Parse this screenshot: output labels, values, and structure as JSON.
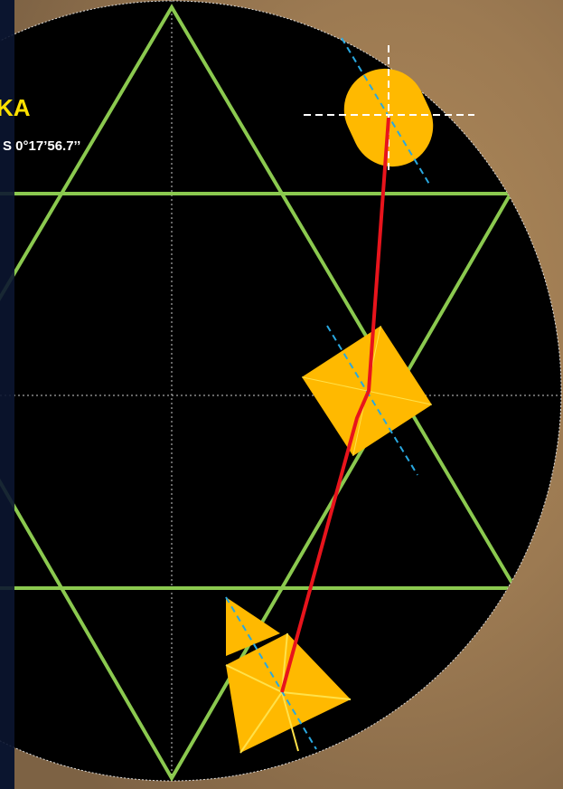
{
  "label": {
    "title": "KA",
    "coordinates": "S 0°17’56.7’’"
  }
}
